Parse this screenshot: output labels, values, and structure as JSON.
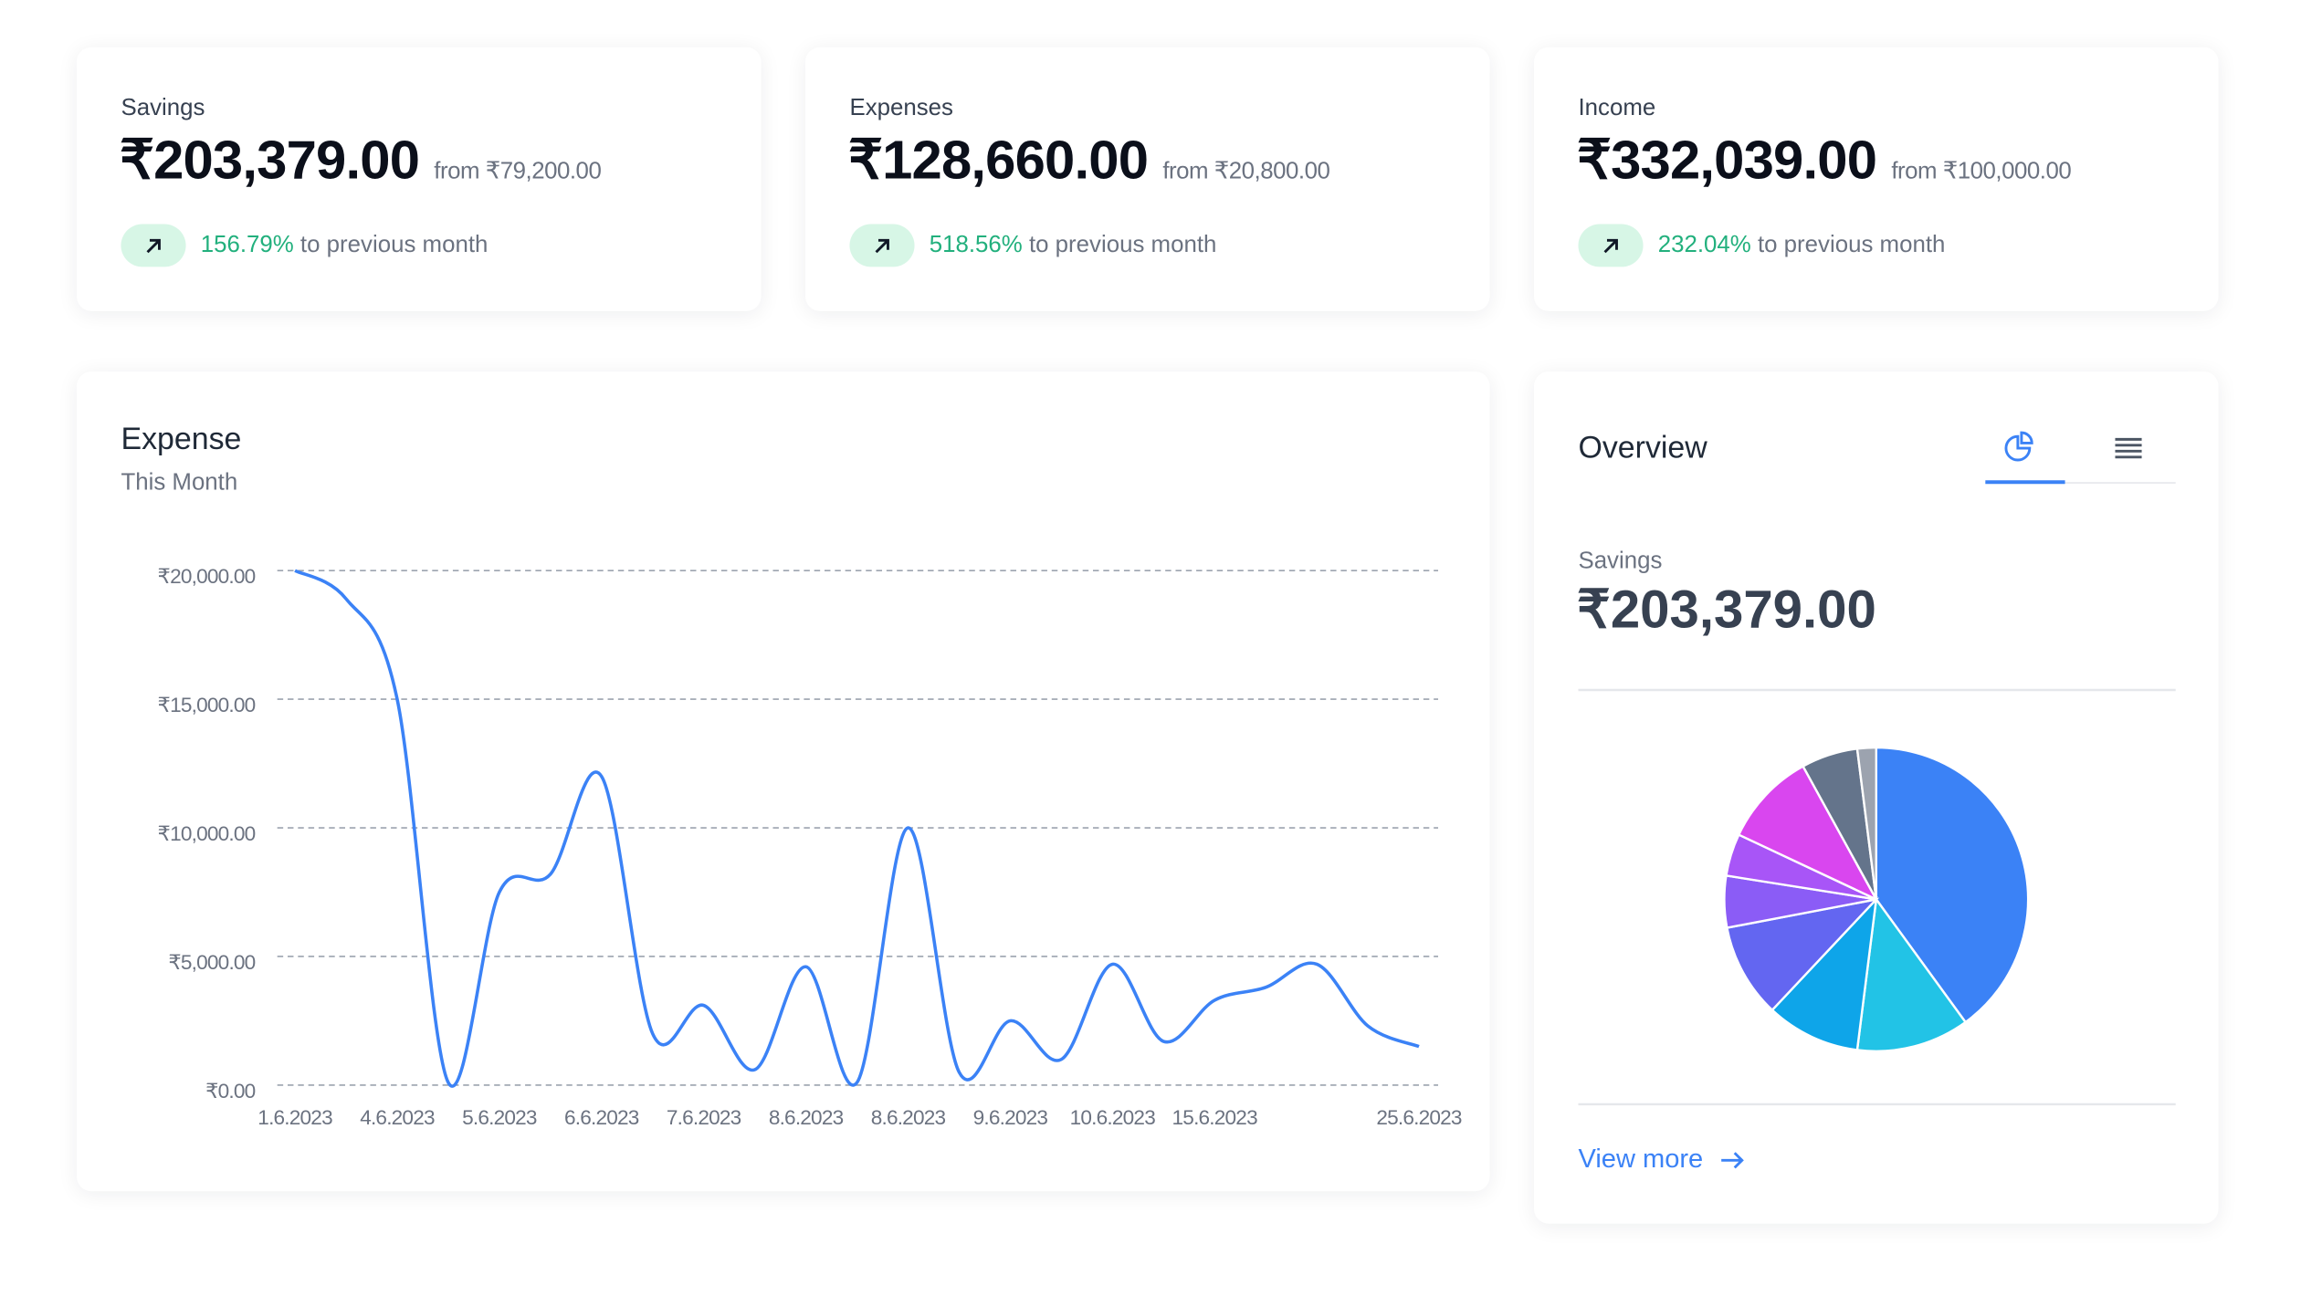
{
  "cards": [
    {
      "label": "Savings",
      "amount": "₹203,379.00",
      "from": "from ₹79,200.00",
      "change": "156.79%",
      "change_text": "to previous month"
    },
    {
      "label": "Expenses",
      "amount": "₹128,660.00",
      "from": "from ₹20,800.00",
      "change": "518.56%",
      "change_text": "to previous month"
    },
    {
      "label": "Income",
      "amount": "₹332,039.00",
      "from": "from ₹100,000.00",
      "change": "232.04%",
      "change_text": "to previous month"
    }
  ],
  "chart_data": [
    {
      "type": "line",
      "title": "Expense",
      "subtitle": "This Month",
      "categories": [
        "1.6.2023",
        null,
        "4.6.2023",
        null,
        "5.6.2023",
        null,
        "6.6.2023",
        null,
        "7.6.2023",
        null,
        "8.6.2023",
        null,
        "8.6.2023",
        null,
        "9.6.2023",
        null,
        "10.6.2023",
        null,
        "15.6.2023",
        null,
        null,
        null,
        "25.6.2023"
      ],
      "series": [
        {
          "color": "#3b82f6",
          "values": [
            20000,
            18900,
            15000,
            100,
            7500,
            8200,
            12000,
            2000,
            3100,
            600,
            4600,
            100,
            10000,
            500,
            2500,
            1000,
            4700,
            1700,
            3300,
            3800,
            4700,
            2300,
            1500
          ]
        }
      ],
      "ylim": [
        0,
        20000
      ],
      "yticks": [
        {
          "value": 0,
          "label": "₹0.00"
        },
        {
          "value": 5000,
          "label": "₹5,000.00"
        },
        {
          "value": 10000,
          "label": "₹10,000.00"
        },
        {
          "value": 15000,
          "label": "₹15,000.00"
        },
        {
          "value": 20000,
          "label": "₹20,000.00"
        }
      ],
      "grid": true
    },
    {
      "type": "pie",
      "title": "Overview",
      "subtitle": "Savings",
      "total": "₹203,379.00",
      "values": [
        40,
        12,
        10,
        10,
        5.5,
        4.5,
        10,
        6,
        2
      ],
      "colors": [
        "#3b82f6",
        "#22c3e6",
        "#0ea5e9",
        "#6366f1",
        "#8b5cf6",
        "#a855f7",
        "#d946ef",
        "#64748b",
        "#9ca3af"
      ]
    }
  ],
  "overview_link": "View more"
}
